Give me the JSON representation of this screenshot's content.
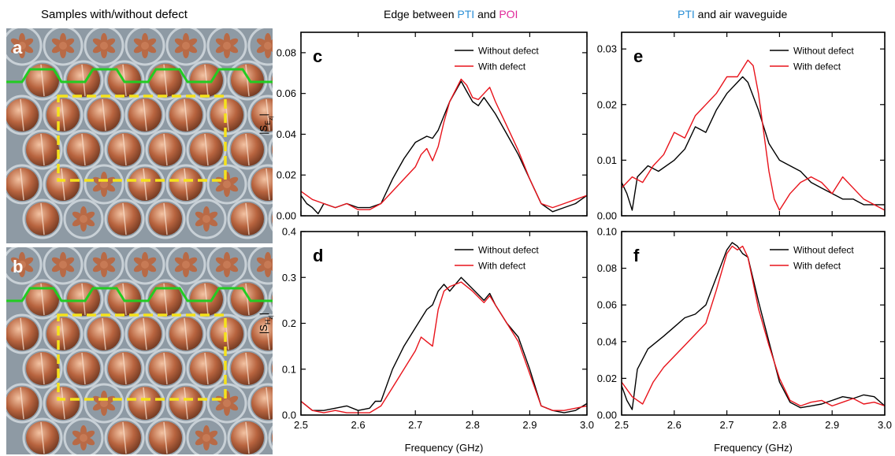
{
  "headings": {
    "photos": "Samples with/without defect",
    "col1_prefix": "Edge between ",
    "col1_pti": "PTI",
    "col1_and": " and ",
    "col1_poi": "POI",
    "col2_pti": "PTI",
    "col2_suffix": " and air waveguide"
  },
  "photo_panels": [
    {
      "letter": "a"
    },
    {
      "letter": "b"
    }
  ],
  "colors": {
    "without_defect": "#000000",
    "with_defect": "#e8131b",
    "edge_line": "#22cc22",
    "defect_box": "#f5e21b",
    "pti": "#2a8fd6",
    "poi": "#e0289a"
  },
  "chart_data": [
    {
      "panel": "c",
      "type": "line",
      "xlabel": "",
      "ylabel": "|S_Ez|",
      "xlim": [
        2.5,
        3.0
      ],
      "ylim": [
        0,
        0.09
      ],
      "yticks": [
        "0.00",
        "0.02",
        "0.04",
        "0.06",
        "0.08"
      ],
      "ytick_values": [
        0,
        0.02,
        0.04,
        0.06,
        0.08
      ],
      "xticks": [],
      "xtick_values": [
        2.5,
        2.6,
        2.7,
        2.8,
        2.9,
        3.0
      ],
      "legend": "top-right",
      "series": [
        {
          "name": "Without defect",
          "color": "#000000",
          "x": [
            2.5,
            2.51,
            2.52,
            2.53,
            2.54,
            2.56,
            2.58,
            2.6,
            2.62,
            2.64,
            2.66,
            2.68,
            2.7,
            2.72,
            2.73,
            2.74,
            2.75,
            2.76,
            2.78,
            2.79,
            2.8,
            2.81,
            2.82,
            2.83,
            2.84,
            2.86,
            2.88,
            2.9,
            2.92,
            2.94,
            2.96,
            2.98,
            3.0
          ],
          "y": [
            0.01,
            0.006,
            0.004,
            0.001,
            0.006,
            0.004,
            0.006,
            0.004,
            0.004,
            0.006,
            0.018,
            0.028,
            0.036,
            0.039,
            0.038,
            0.042,
            0.049,
            0.056,
            0.066,
            0.061,
            0.056,
            0.054,
            0.058,
            0.054,
            0.05,
            0.04,
            0.03,
            0.018,
            0.006,
            0.002,
            0.004,
            0.006,
            0.01
          ]
        },
        {
          "name": "With defect",
          "color": "#e8131b",
          "x": [
            2.5,
            2.52,
            2.54,
            2.56,
            2.58,
            2.6,
            2.62,
            2.64,
            2.66,
            2.68,
            2.7,
            2.71,
            2.72,
            2.73,
            2.74,
            2.75,
            2.76,
            2.78,
            2.79,
            2.8,
            2.81,
            2.82,
            2.83,
            2.84,
            2.86,
            2.88,
            2.9,
            2.92,
            2.94,
            2.96,
            2.98,
            3.0
          ],
          "y": [
            0.012,
            0.008,
            0.006,
            0.004,
            0.006,
            0.003,
            0.003,
            0.006,
            0.012,
            0.018,
            0.024,
            0.03,
            0.033,
            0.027,
            0.034,
            0.046,
            0.056,
            0.067,
            0.064,
            0.058,
            0.057,
            0.06,
            0.063,
            0.056,
            0.044,
            0.032,
            0.018,
            0.006,
            0.004,
            0.006,
            0.008,
            0.01
          ]
        }
      ]
    },
    {
      "panel": "d",
      "type": "line",
      "xlabel": "Frequency (GHz)",
      "ylabel": "|S_Hz|",
      "xlim": [
        2.5,
        3.0
      ],
      "ylim": [
        0,
        0.4
      ],
      "yticks": [
        "0.0",
        "0.1",
        "0.2",
        "0.3",
        "0.4"
      ],
      "ytick_values": [
        0,
        0.1,
        0.2,
        0.3,
        0.4
      ],
      "xticks": [
        "2.5",
        "2.6",
        "2.7",
        "2.8",
        "2.9",
        "3.0"
      ],
      "xtick_values": [
        2.5,
        2.6,
        2.7,
        2.8,
        2.9,
        3.0
      ],
      "legend": "top-right",
      "series": [
        {
          "name": "Without defect",
          "color": "#000000",
          "x": [
            2.5,
            2.52,
            2.54,
            2.56,
            2.58,
            2.6,
            2.62,
            2.63,
            2.64,
            2.66,
            2.68,
            2.7,
            2.72,
            2.73,
            2.74,
            2.75,
            2.76,
            2.78,
            2.8,
            2.82,
            2.83,
            2.84,
            2.86,
            2.88,
            2.9,
            2.92,
            2.94,
            2.96,
            2.98,
            3.0
          ],
          "y": [
            0.03,
            0.01,
            0.01,
            0.015,
            0.02,
            0.01,
            0.015,
            0.03,
            0.03,
            0.1,
            0.15,
            0.19,
            0.23,
            0.24,
            0.27,
            0.285,
            0.27,
            0.3,
            0.275,
            0.25,
            0.265,
            0.24,
            0.2,
            0.17,
            0.1,
            0.02,
            0.01,
            0.005,
            0.01,
            0.025
          ]
        },
        {
          "name": "With defect",
          "color": "#e8131b",
          "x": [
            2.5,
            2.52,
            2.54,
            2.56,
            2.58,
            2.6,
            2.62,
            2.64,
            2.66,
            2.68,
            2.7,
            2.71,
            2.72,
            2.73,
            2.74,
            2.75,
            2.76,
            2.78,
            2.8,
            2.82,
            2.83,
            2.84,
            2.86,
            2.88,
            2.9,
            2.92,
            2.94,
            2.96,
            2.98,
            3.0
          ],
          "y": [
            0.03,
            0.01,
            0.005,
            0.01,
            0.005,
            0.005,
            0.005,
            0.02,
            0.06,
            0.1,
            0.14,
            0.17,
            0.16,
            0.15,
            0.23,
            0.27,
            0.28,
            0.29,
            0.27,
            0.245,
            0.26,
            0.24,
            0.2,
            0.16,
            0.09,
            0.02,
            0.01,
            0.01,
            0.015,
            0.02
          ]
        }
      ]
    },
    {
      "panel": "e",
      "type": "line",
      "xlabel": "",
      "ylabel": "",
      "xlim": [
        2.5,
        3.0
      ],
      "ylim": [
        0,
        0.033
      ],
      "yticks": [
        "0.00",
        "0.01",
        "0.02",
        "0.03"
      ],
      "ytick_values": [
        0,
        0.01,
        0.02,
        0.03
      ],
      "xticks": [],
      "xtick_values": [
        2.5,
        2.6,
        2.7,
        2.8,
        2.9,
        3.0
      ],
      "legend": "top-right",
      "series": [
        {
          "name": "Without defect",
          "color": "#000000",
          "x": [
            2.5,
            2.51,
            2.52,
            2.53,
            2.55,
            2.57,
            2.6,
            2.62,
            2.64,
            2.66,
            2.68,
            2.7,
            2.72,
            2.73,
            2.74,
            2.76,
            2.78,
            2.8,
            2.82,
            2.84,
            2.86,
            2.88,
            2.9,
            2.92,
            2.94,
            2.96,
            2.98,
            3.0
          ],
          "y": [
            0.006,
            0.004,
            0.001,
            0.007,
            0.009,
            0.008,
            0.01,
            0.012,
            0.016,
            0.015,
            0.019,
            0.022,
            0.024,
            0.025,
            0.024,
            0.019,
            0.013,
            0.01,
            0.009,
            0.008,
            0.006,
            0.005,
            0.004,
            0.003,
            0.003,
            0.002,
            0.002,
            0.002
          ]
        },
        {
          "name": "With defect",
          "color": "#e8131b",
          "x": [
            2.5,
            2.52,
            2.54,
            2.56,
            2.58,
            2.6,
            2.62,
            2.64,
            2.66,
            2.68,
            2.7,
            2.72,
            2.74,
            2.75,
            2.76,
            2.77,
            2.78,
            2.79,
            2.8,
            2.82,
            2.84,
            2.86,
            2.88,
            2.9,
            2.92,
            2.94,
            2.96,
            2.98,
            3.0
          ],
          "y": [
            0.005,
            0.007,
            0.006,
            0.009,
            0.011,
            0.015,
            0.014,
            0.018,
            0.02,
            0.022,
            0.025,
            0.025,
            0.028,
            0.027,
            0.022,
            0.015,
            0.008,
            0.003,
            0.001,
            0.004,
            0.006,
            0.007,
            0.006,
            0.004,
            0.007,
            0.005,
            0.003,
            0.002,
            0.001
          ]
        }
      ]
    },
    {
      "panel": "f",
      "type": "line",
      "xlabel": "Frequency (GHz)",
      "ylabel": "",
      "xlim": [
        2.5,
        3.0
      ],
      "ylim": [
        0,
        0.1
      ],
      "yticks": [
        "0.00",
        "0.02",
        "0.04",
        "0.06",
        "0.08",
        "0.10"
      ],
      "ytick_values": [
        0,
        0.02,
        0.04,
        0.06,
        0.08,
        0.1
      ],
      "xticks": [
        "2.5",
        "2.6",
        "2.7",
        "2.8",
        "2.9",
        "3.0"
      ],
      "xtick_values": [
        2.5,
        2.6,
        2.7,
        2.8,
        2.9,
        3.0
      ],
      "legend": "top-right",
      "series": [
        {
          "name": "Without defect",
          "color": "#000000",
          "x": [
            2.5,
            2.51,
            2.52,
            2.53,
            2.55,
            2.58,
            2.6,
            2.62,
            2.64,
            2.66,
            2.68,
            2.7,
            2.71,
            2.72,
            2.73,
            2.74,
            2.76,
            2.78,
            2.8,
            2.82,
            2.84,
            2.86,
            2.88,
            2.9,
            2.92,
            2.94,
            2.96,
            2.98,
            3.0
          ],
          "y": [
            0.016,
            0.008,
            0.003,
            0.025,
            0.036,
            0.043,
            0.048,
            0.053,
            0.055,
            0.06,
            0.075,
            0.09,
            0.094,
            0.092,
            0.088,
            0.086,
            0.062,
            0.04,
            0.018,
            0.007,
            0.004,
            0.005,
            0.006,
            0.008,
            0.01,
            0.009,
            0.011,
            0.01,
            0.005
          ]
        },
        {
          "name": "With defect",
          "color": "#e8131b",
          "x": [
            2.5,
            2.52,
            2.54,
            2.56,
            2.58,
            2.6,
            2.62,
            2.64,
            2.66,
            2.68,
            2.7,
            2.71,
            2.72,
            2.73,
            2.74,
            2.76,
            2.78,
            2.8,
            2.82,
            2.84,
            2.86,
            2.88,
            2.9,
            2.92,
            2.94,
            2.96,
            2.98,
            3.0
          ],
          "y": [
            0.018,
            0.01,
            0.006,
            0.018,
            0.026,
            0.032,
            0.038,
            0.044,
            0.05,
            0.068,
            0.088,
            0.092,
            0.09,
            0.092,
            0.086,
            0.058,
            0.038,
            0.02,
            0.008,
            0.005,
            0.007,
            0.008,
            0.005,
            0.007,
            0.009,
            0.006,
            0.007,
            0.005
          ]
        }
      ]
    }
  ]
}
